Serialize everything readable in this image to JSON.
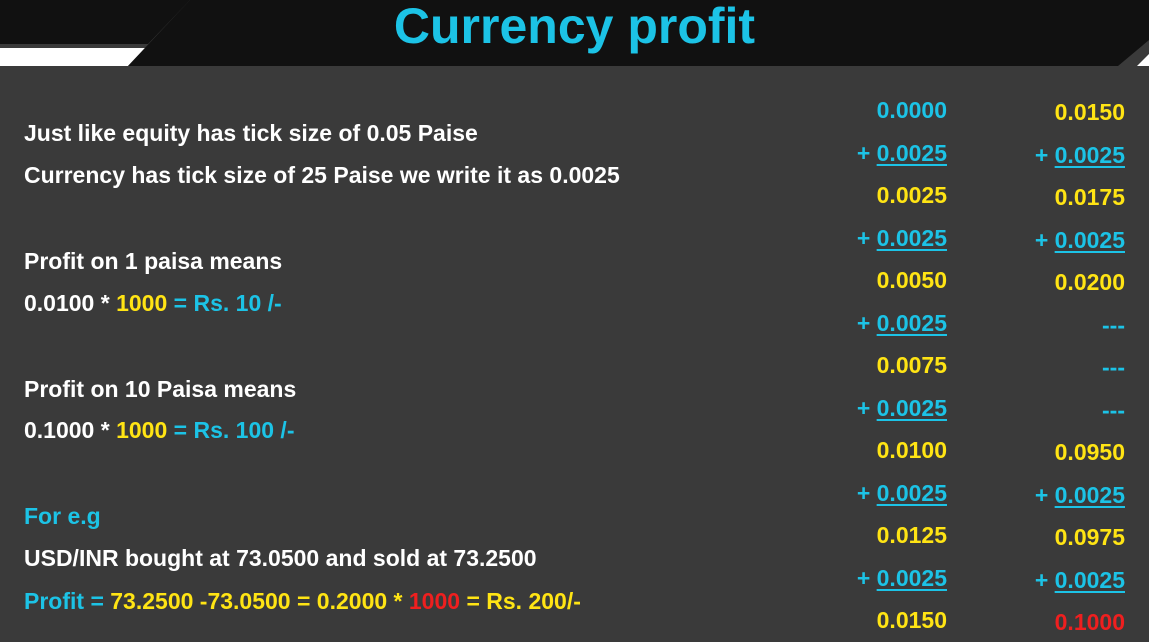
{
  "title": "Currency profit",
  "lines": {
    "l1": "Just like equity has tick size of 0.05 Paise",
    "l2": "Currency has tick size of 25 Paise we write it as 0.0025",
    "l3": "Profit on 1 paisa means",
    "l4": {
      "a": "0.0100 * ",
      "b": "1000",
      "c": " = ",
      "d": "Rs. 10 /-"
    },
    "l5": "Profit on 10 Paisa means",
    "l6": {
      "a": "0.1000 * ",
      "b": "1000",
      "c": " = ",
      "d": "Rs. 100 /-"
    },
    "l7": "For e.g",
    "l8": "USD/INR bought at 73.0500 and sold at 73.2500",
    "l9": {
      "a": "Profit = ",
      "b": "73.2500 -73.0500 = 0.2000 * ",
      "c": "1000",
      "d": " = Rs. 200/-"
    }
  },
  "column1": [
    {
      "prefix": "",
      "value": "0.0000",
      "color": "#1cc3e6",
      "underline": false
    },
    {
      "prefix": "+ ",
      "value": "0.0025",
      "color": "#1cc3e6",
      "underline": true
    },
    {
      "prefix": "",
      "value": "0.0025",
      "color": "#ffe414",
      "underline": false
    },
    {
      "prefix": "+ ",
      "value": "0.0025",
      "color": "#1cc3e6",
      "underline": true
    },
    {
      "prefix": "",
      "value": "0.0050",
      "color": "#ffe414",
      "underline": false
    },
    {
      "prefix": "+ ",
      "value": "0.0025",
      "color": "#1cc3e6",
      "underline": true
    },
    {
      "prefix": "",
      "value": "0.0075",
      "color": "#ffe414",
      "underline": false
    },
    {
      "prefix": "+ ",
      "value": "0.0025",
      "color": "#1cc3e6",
      "underline": true
    },
    {
      "prefix": "",
      "value": "0.0100",
      "color": "#ffe414",
      "underline": false
    },
    {
      "prefix": "+ ",
      "value": "0.0025",
      "color": "#1cc3e6",
      "underline": true
    },
    {
      "prefix": "",
      "value": "0.0125",
      "color": "#ffe414",
      "underline": false
    },
    {
      "prefix": "+ ",
      "value": "0.0025",
      "color": "#1cc3e6",
      "underline": true
    },
    {
      "prefix": "",
      "value": "0.0150",
      "color": "#ffe414",
      "underline": false
    }
  ],
  "column2": [
    {
      "prefix": "",
      "value": "0.0150",
      "color": "#ffe414",
      "underline": false
    },
    {
      "prefix": "+ ",
      "value": "0.0025",
      "color": "#1cc3e6",
      "underline": true
    },
    {
      "prefix": "",
      "value": "0.0175",
      "color": "#ffe414",
      "underline": false
    },
    {
      "prefix": "+ ",
      "value": "0.0025",
      "color": "#1cc3e6",
      "underline": true
    },
    {
      "prefix": "",
      "value": "0.0200",
      "color": "#ffe414",
      "underline": false
    },
    {
      "prefix": "",
      "value": "---",
      "color": "#1cc3e6",
      "underline": false
    },
    {
      "prefix": "",
      "value": "---",
      "color": "#1cc3e6",
      "underline": false
    },
    {
      "prefix": "",
      "value": "---",
      "color": "#1cc3e6",
      "underline": false
    },
    {
      "prefix": "",
      "value": "0.0950",
      "color": "#ffe414",
      "underline": false
    },
    {
      "prefix": "+ ",
      "value": "0.0025",
      "color": "#1cc3e6",
      "underline": true
    },
    {
      "prefix": "",
      "value": "0.0975",
      "color": "#ffe414",
      "underline": false
    },
    {
      "prefix": "+ ",
      "value": "0.0025",
      "color": "#1cc3e6",
      "underline": true
    },
    {
      "prefix": "",
      "value": "0.1000",
      "color": "#ef1f1f",
      "underline": false
    }
  ]
}
